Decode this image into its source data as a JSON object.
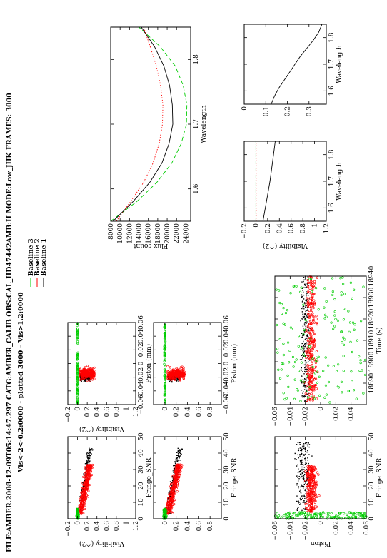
{
  "header": {
    "line1": "FILE:AMBER.2008-12-09T05:14:47.297  CATG:AMBER_CALIB  OBS:CAL_HD47442AMB:H  MODE:Low_JHK  FRAMES: 3000",
    "line2": "Vis<-2<-0.2:0000  -  plotted  3000  -  Vis>1.2:0000"
  },
  "colors": {
    "baseline1": "#000000",
    "baseline2": "#ff0000",
    "baseline3": "#00cc00"
  },
  "legend": {
    "items": [
      {
        "label": "Baseline 3",
        "color": "#00cc00",
        "marker": "+"
      },
      {
        "label": "Baseline 2",
        "color": "#ff0000",
        "marker": "o"
      },
      {
        "label": "Baseline 1",
        "color": "#000000",
        "marker": "+"
      }
    ]
  },
  "chart_data": [
    {
      "id": "vis_snr_a",
      "type": "scatter",
      "xlabel": "Fringe_SNR",
      "ylabel": "Visibility (^2)",
      "xlim": [
        0,
        50
      ],
      "ylim": [
        -0.2,
        1.2
      ],
      "xticks": [
        "0",
        "10",
        "20",
        "30",
        "40",
        "50"
      ],
      "yticks": [
        "−0.2",
        "0",
        "0.2",
        "0.4",
        "0.6",
        "0.8",
        "1",
        "1.2"
      ]
    },
    {
      "id": "vis_snr_b",
      "type": "scatter",
      "xlabel": "Fringe_SNR",
      "ylabel": "",
      "xlim": [
        0,
        50
      ],
      "ylim": [
        -0.2,
        1.0
      ],
      "xticks": [
        "0",
        "10",
        "20",
        "30",
        "40",
        "50"
      ],
      "yticks": [
        "0",
        "0.2",
        "0.4",
        "0.6",
        "0.8"
      ]
    },
    {
      "id": "vis_piston_a",
      "type": "scatter",
      "xlabel": "Piston (mm)",
      "ylabel": "Visibility (^2)",
      "xlim": [
        -0.06,
        0.06
      ],
      "ylim": [
        -0.2,
        1.2
      ],
      "xticks": [
        "−0.06",
        "−0.04",
        "−0.02",
        "0",
        "0.02",
        "0.04",
        "0.06"
      ],
      "yticks": [
        "−0.2",
        "0",
        "0.2",
        "0.4",
        "0.6",
        "0.8",
        "1",
        "1.2"
      ]
    },
    {
      "id": "vis_piston_b",
      "type": "scatter",
      "xlabel": "Piston (mm)",
      "ylabel": "",
      "xlim": [
        -0.06,
        0.06
      ],
      "ylim": [
        -0.2,
        1.0
      ],
      "xticks": [
        "−0.06",
        "−0.04",
        "−0.02",
        "0",
        "0.02",
        "0.04",
        "0.06"
      ],
      "yticks": [
        "0",
        "0.2",
        "0.4",
        "0.6",
        "0.8"
      ]
    },
    {
      "id": "piston_snr",
      "type": "scatter",
      "xlabel": "Fringe_SNR",
      "ylabel": "Piston",
      "xlim": [
        0,
        50
      ],
      "ylim": [
        -0.06,
        0.06
      ],
      "xticks": [
        "0",
        "10",
        "20",
        "30",
        "40",
        "50"
      ],
      "yticks": [
        "−0.06",
        "−0.04",
        "−0.02",
        "0",
        "0.02",
        "0.04",
        "0.06"
      ]
    },
    {
      "id": "piston_time",
      "type": "scatter",
      "xlabel": "Time (s)",
      "ylabel": "",
      "xlim": [
        18880,
        18940
      ],
      "ylim": [
        -0.06,
        0.06
      ],
      "xticks": [
        "18890",
        "18900",
        "18910",
        "18920",
        "18930",
        "18940"
      ],
      "yticks": [
        "−0.06",
        "−0.04",
        "−0.02",
        "0",
        "0.02",
        "0.04"
      ]
    },
    {
      "id": "flux",
      "type": "line",
      "xlabel": "Wavelength",
      "ylabel": "Flux count",
      "xlim": [
        1.55,
        1.85
      ],
      "ylim": [
        8000,
        25000
      ],
      "xticks": [
        "1.6",
        "1.7",
        "1.8"
      ],
      "yticks": [
        "8000",
        "10000",
        "12000",
        "14000",
        "16000",
        "18000",
        "20000",
        "22000",
        "24000"
      ],
      "series": [
        {
          "color": "#00cc00",
          "style": "dashed",
          "x": [
            1.55,
            1.58,
            1.61,
            1.64,
            1.67,
            1.7,
            1.73,
            1.76,
            1.79,
            1.82,
            1.85
          ],
          "y": [
            8000,
            13500,
            17800,
            21000,
            23000,
            24100,
            24200,
            23400,
            21700,
            18500,
            14000
          ]
        },
        {
          "color": "#000000",
          "style": "solid",
          "x": [
            1.55,
            1.58,
            1.61,
            1.64,
            1.67,
            1.7,
            1.73,
            1.76,
            1.79,
            1.82,
            1.85
          ],
          "y": [
            8500,
            12700,
            16300,
            18900,
            20400,
            21200,
            21100,
            20500,
            19300,
            17300,
            14500
          ]
        },
        {
          "color": "#ff0000",
          "style": "dotted",
          "x": [
            1.55,
            1.58,
            1.61,
            1.64,
            1.67,
            1.7,
            1.73,
            1.76,
            1.79,
            1.82,
            1.85
          ],
          "y": [
            9200,
            12200,
            15000,
            17000,
            18300,
            19000,
            19100,
            18600,
            17700,
            16400,
            15000
          ]
        }
      ]
    },
    {
      "id": "vis_wave",
      "type": "line",
      "xlabel": "Wavelength",
      "ylabel": "Visibility (^2)",
      "xlim": [
        1.55,
        1.85
      ],
      "ylim": [
        -0.2,
        1.2
      ],
      "xticks": [
        "1.6",
        "1.7",
        "1.8"
      ],
      "yticks": [
        "−0.2",
        "0",
        "0.2",
        "0.4",
        "0.6",
        "0.8",
        "1",
        "1.2"
      ],
      "series": [
        {
          "color": "#000000",
          "style": "solid",
          "x": [
            1.55,
            1.6,
            1.65,
            1.7,
            1.75,
            1.8,
            1.85
          ],
          "y": [
            0.12,
            0.16,
            0.2,
            0.24,
            0.27,
            0.3,
            0.33
          ]
        },
        {
          "color": "#ff0000",
          "style": "dotted",
          "x": [
            1.55,
            1.85
          ],
          "y": [
            0.005,
            0.005
          ]
        },
        {
          "color": "#00cc00",
          "style": "dashdot",
          "x": [
            1.55,
            1.85
          ],
          "y": [
            0.0,
            0.0
          ]
        }
      ]
    },
    {
      "id": "vis_wave_zoom",
      "type": "line",
      "xlabel": "Wavelength",
      "ylabel": "",
      "xlim": [
        1.55,
        1.85
      ],
      "ylim": [
        0,
        0.38
      ],
      "xticks": [
        "1.6",
        "1.7",
        "1.8"
      ],
      "yticks": [
        "0",
        "0.1",
        "0.2",
        "0.3"
      ],
      "series": [
        {
          "color": "#000000",
          "style": "solid",
          "x": [
            1.55,
            1.58,
            1.61,
            1.64,
            1.67,
            1.7,
            1.73,
            1.76,
            1.79,
            1.82,
            1.85
          ],
          "y": [
            0.125,
            0.14,
            0.16,
            0.185,
            0.21,
            0.235,
            0.26,
            0.29,
            0.32,
            0.345,
            0.36
          ]
        }
      ]
    }
  ]
}
